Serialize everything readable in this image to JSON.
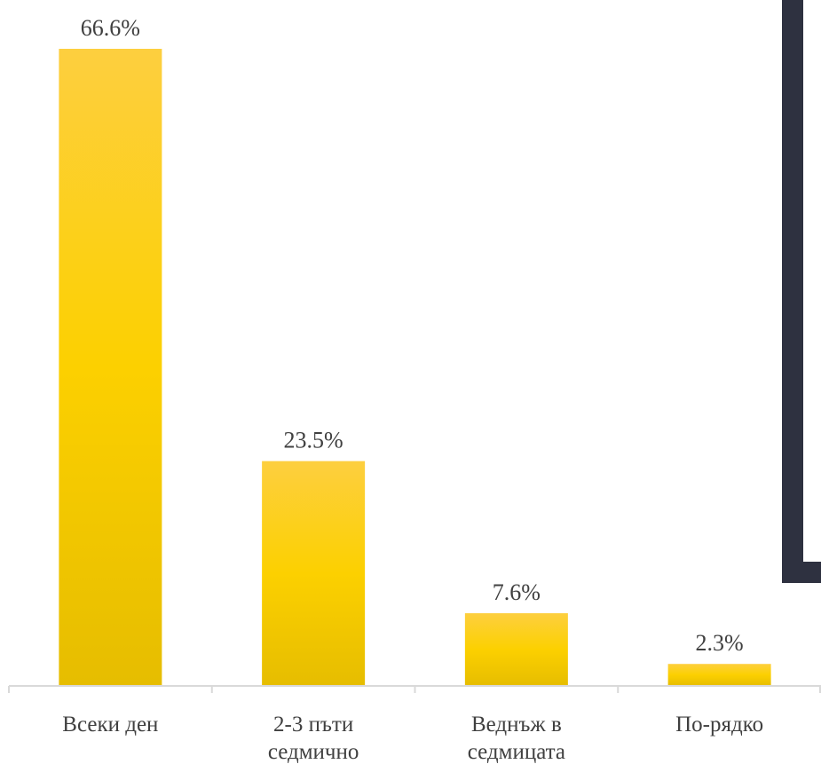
{
  "chart_data": {
    "type": "bar",
    "title": "",
    "xlabel": "",
    "ylabel": "",
    "categories": [
      [
        "Всеки ден"
      ],
      [
        "2-3 пъти",
        "седмично"
      ],
      [
        "Веднъж в",
        "седмицата"
      ],
      [
        "По-рядко"
      ]
    ],
    "values": [
      66.6,
      23.5,
      7.6,
      2.3
    ],
    "value_labels": [
      "66.6%",
      "23.5%",
      "7.6%",
      "2.3%"
    ],
    "ylim": [
      0,
      66.6
    ],
    "grid": false,
    "legend": "none",
    "colors": {
      "bar_top": "#FDCF3F",
      "bar_mid": "#FCD000",
      "bar_bottom": "#E6BD00",
      "axis": "#D9D9D9",
      "text": "#404040",
      "frame": "#2E3140"
    }
  }
}
